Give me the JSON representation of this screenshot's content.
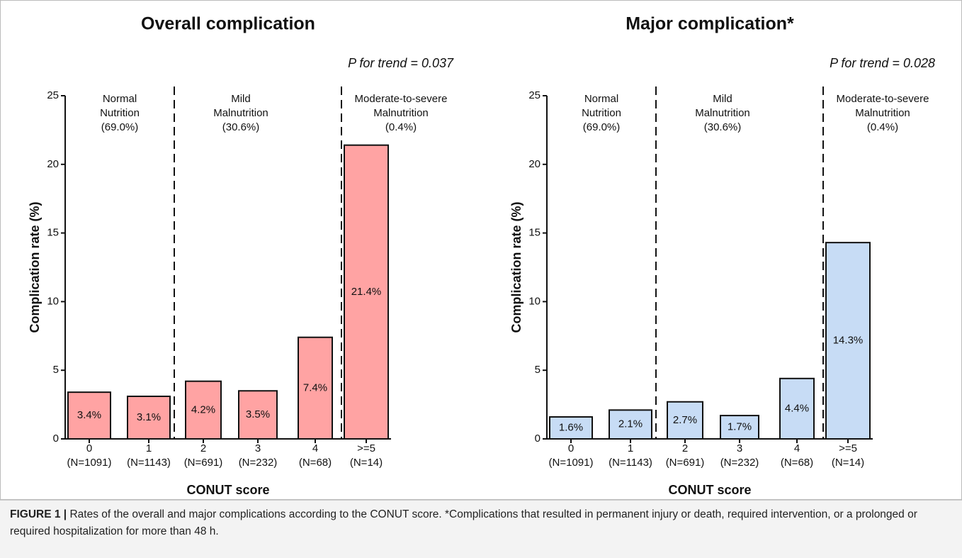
{
  "chart_data": [
    {
      "type": "bar",
      "title": "Overall complication",
      "annotation": "P for trend = 0.037",
      "y_label": "Complication rate (%)",
      "x_label": "CONUT score",
      "categories": [
        "0",
        "1",
        "2",
        "3",
        "4",
        ">=5"
      ],
      "category_counts": [
        "(N=1091)",
        "(N=1143)",
        "(N=691)",
        "(N=232)",
        "(N=68)",
        "(N=14)"
      ],
      "groups": [
        [
          "Normal",
          "Nutrition",
          "(69.0%)"
        ],
        [
          "Mild",
          "Malnutrition",
          "(30.6%)"
        ],
        [
          "Moderate-to-severe",
          "Malnutrition",
          "(0.4%)"
        ]
      ],
      "values": [
        3.4,
        3.1,
        4.2,
        3.5,
        7.4,
        21.4
      ],
      "value_labels": [
        "3.4%",
        "3.1%",
        "4.2%",
        "3.5%",
        "7.4%",
        "21.4%"
      ],
      "color": "#ffa3a3",
      "ylim": [
        0,
        25
      ],
      "yticks": [
        0,
        5,
        10,
        15,
        20,
        25
      ]
    },
    {
      "type": "bar",
      "title": "Major complication*",
      "annotation": "P for trend = 0.028",
      "y_label": "Complication rate (%)",
      "x_label": "CONUT score",
      "categories": [
        "0",
        "1",
        "2",
        "3",
        "4",
        ">=5"
      ],
      "category_counts": [
        "(N=1091)",
        "(N=1143)",
        "(N=691)",
        "(N=232)",
        "(N=68)",
        "(N=14)"
      ],
      "groups": [
        [
          "Normal",
          "Nutrition",
          "(69.0%)"
        ],
        [
          "Mild",
          "Malnutrition",
          "(30.6%)"
        ],
        [
          "Moderate-to-severe",
          "Malnutrition",
          "(0.4%)"
        ]
      ],
      "values": [
        1.6,
        2.1,
        2.7,
        1.7,
        4.4,
        14.3
      ],
      "value_labels": [
        "1.6%",
        "2.1%",
        "2.7%",
        "1.7%",
        "4.4%",
        "14.3%"
      ],
      "color": "#c7dcf5",
      "ylim": [
        0,
        25
      ],
      "yticks": [
        0,
        5,
        10,
        15,
        20,
        25
      ]
    }
  ],
  "caption": {
    "label": "FIGURE 1 |",
    "text": "Rates of the overall and major complications according to the CONUT score. ",
    "footnote": "*Complications that resulted in permanent injury or death, required intervention, or a prolonged or required hospitalization for more than 48 h."
  }
}
